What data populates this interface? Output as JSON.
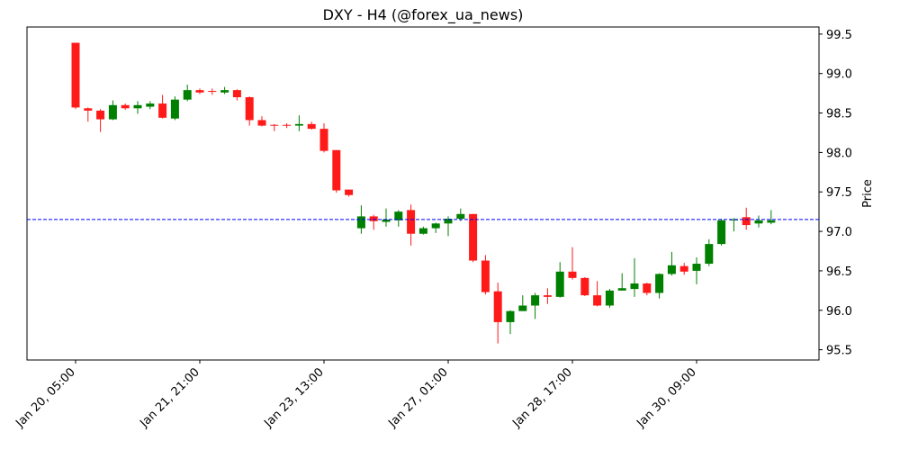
{
  "chart_data": {
    "type": "candlestick",
    "title": "DXY - H4 (@forex_ua_news)",
    "y_label": "Price",
    "categories": [
      "Jan 20, 05:00",
      null,
      null,
      null,
      null,
      null,
      null,
      null,
      null,
      null,
      "Jan 21, 21:00",
      null,
      null,
      null,
      null,
      null,
      null,
      null,
      null,
      null,
      "Jan 23, 13:00",
      null,
      null,
      null,
      null,
      null,
      null,
      null,
      null,
      null,
      "Jan 27, 01:00",
      null,
      null,
      null,
      null,
      null,
      null,
      null,
      null,
      null,
      "Jan 28, 17:00",
      null,
      null,
      null,
      null,
      null,
      null,
      null,
      null,
      null,
      "Jan 30, 09:00",
      null,
      null,
      null,
      null,
      null,
      null
    ],
    "open": [
      99.39,
      98.56,
      98.53,
      98.42,
      98.6,
      98.56,
      98.58,
      98.62,
      98.43,
      98.67,
      98.79,
      98.78,
      98.76,
      98.79,
      98.7,
      98.41,
      98.35,
      98.35,
      98.34,
      98.36,
      98.3,
      98.03,
      97.53,
      97.04,
      97.19,
      97.12,
      97.14,
      97.27,
      96.97,
      97.04,
      97.1,
      97.16,
      97.22,
      96.63,
      96.24,
      95.85,
      95.99,
      96.06,
      96.19,
      96.17,
      96.49,
      96.41,
      96.19,
      96.06,
      96.25,
      96.27,
      96.34,
      96.22,
      96.46,
      96.56,
      96.5,
      96.59,
      96.84,
      97.14,
      97.18,
      97.1,
      97.11
    ],
    "high": [
      99.39,
      98.57,
      98.55,
      98.66,
      98.62,
      98.65,
      98.65,
      98.73,
      98.71,
      98.86,
      98.81,
      98.81,
      98.83,
      98.8,
      98.71,
      98.46,
      98.36,
      98.37,
      98.47,
      98.39,
      98.37,
      98.03,
      97.53,
      97.33,
      97.21,
      97.29,
      97.27,
      97.34,
      97.06,
      97.11,
      97.19,
      97.29,
      97.22,
      96.7,
      96.35,
      96.0,
      96.19,
      96.22,
      96.28,
      96.61,
      96.8,
      96.42,
      96.37,
      96.27,
      96.47,
      96.66,
      96.35,
      96.47,
      96.74,
      96.6,
      96.67,
      96.9,
      97.16,
      97.17,
      97.3,
      97.2,
      97.27
    ],
    "low": [
      98.55,
      98.39,
      98.26,
      98.41,
      98.54,
      98.49,
      98.55,
      98.43,
      98.41,
      98.65,
      98.74,
      98.73,
      98.74,
      98.66,
      98.34,
      98.33,
      98.27,
      98.31,
      98.27,
      98.29,
      98.0,
      97.49,
      97.44,
      96.97,
      97.02,
      97.06,
      97.06,
      96.82,
      96.96,
      96.98,
      96.94,
      97.13,
      96.61,
      96.2,
      95.58,
      95.7,
      95.99,
      95.89,
      96.08,
      96.16,
      96.39,
      96.18,
      96.05,
      96.03,
      96.25,
      96.17,
      96.19,
      96.15,
      96.44,
      96.45,
      96.33,
      96.56,
      96.82,
      97.0,
      97.02,
      97.05,
      97.09
    ],
    "close": [
      98.57,
      98.53,
      98.42,
      98.6,
      98.56,
      98.6,
      98.62,
      98.44,
      98.67,
      98.79,
      98.76,
      98.77,
      98.79,
      98.7,
      98.41,
      98.34,
      98.34,
      98.34,
      98.36,
      98.3,
      98.02,
      97.52,
      97.46,
      97.19,
      97.13,
      97.15,
      97.25,
      96.97,
      97.04,
      97.1,
      97.16,
      97.22,
      96.63,
      96.23,
      95.85,
      95.99,
      96.06,
      96.19,
      96.17,
      96.49,
      96.41,
      96.19,
      96.06,
      96.25,
      96.28,
      96.34,
      96.22,
      96.46,
      96.57,
      96.49,
      96.59,
      96.84,
      97.14,
      97.15,
      97.08,
      97.14,
      97.14
    ],
    "up_color": "#008000",
    "down_color": "#ff1a1a",
    "hline": {
      "value": 97.15,
      "color": "#0000ff"
    },
    "ylim": [
      95.37,
      99.59
    ],
    "yticks": [
      95.5,
      {
        "value": 96,
        "label": "96.0"
      },
      96.5,
      {
        "value": 97,
        "label": "97.0"
      },
      97.5,
      {
        "value": 98,
        "label": "98.0"
      },
      98.5,
      {
        "value": 99,
        "label": "99.0"
      },
      99.5
    ],
    "y_axis_side": "right"
  }
}
